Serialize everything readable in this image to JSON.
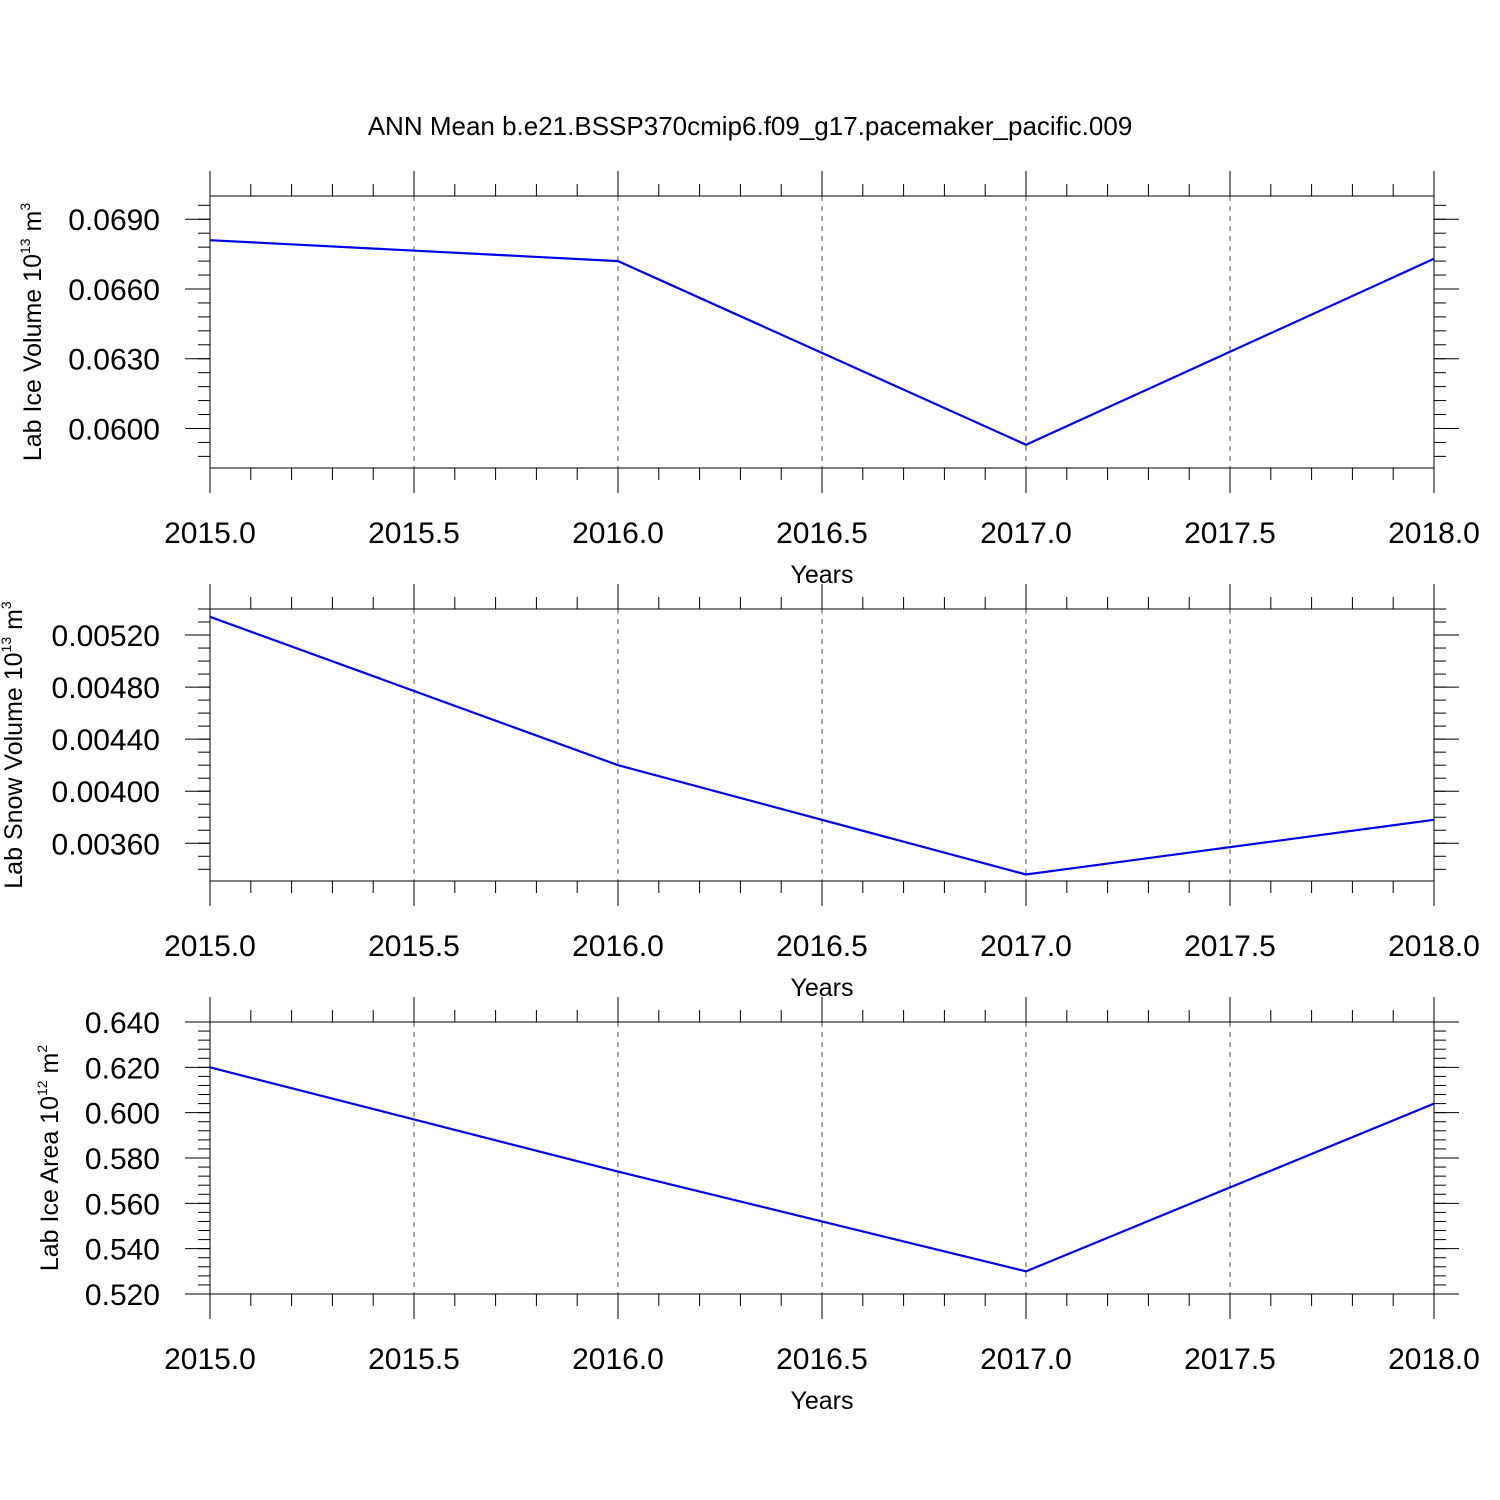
{
  "figure": {
    "title": "ANN Mean b.e21.BSSP370cmip6.f09_g17.pacemaker_pacific.009"
  },
  "chart_data": [
    {
      "type": "line",
      "xlabel": "Years",
      "ylabel": {
        "text": "Lab Ice Volume 10",
        "exp": "13",
        "unit": " m",
        "unit_exp": "3"
      },
      "xlim": [
        2015.0,
        2018.0
      ],
      "ylim": [
        0.0583,
        0.07
      ],
      "xticks": [
        "2015.0",
        "2015.5",
        "2016.0",
        "2016.5",
        "2017.0",
        "2017.5",
        "2018.0"
      ],
      "yticks": [
        "0.0690",
        "0.0660",
        "0.0630",
        "0.0600"
      ],
      "x_minor": 0.1,
      "y_minor": 0.0006,
      "grid": "vertical-dashed",
      "series": [
        {
          "color": "#0000ee",
          "x": [
            2015,
            2016,
            2017,
            2018
          ],
          "y": [
            0.0681,
            0.0672,
            0.0593,
            0.0673
          ]
        }
      ]
    },
    {
      "type": "line",
      "xlabel": "Years",
      "ylabel": {
        "text": "Lab Snow Volume 10",
        "exp": "13",
        "unit": " m",
        "unit_exp": "3"
      },
      "xlim": [
        2015.0,
        2018.0
      ],
      "ylim": [
        0.00331,
        0.0054
      ],
      "xticks": [
        "2015.0",
        "2015.5",
        "2016.0",
        "2016.5",
        "2017.0",
        "2017.5",
        "2018.0"
      ],
      "yticks": [
        "0.00520",
        "0.00480",
        "0.00440",
        "0.00400",
        "0.00360"
      ],
      "x_minor": 0.1,
      "y_minor": 0.0001,
      "grid": "vertical-dashed",
      "series": [
        {
          "color": "#0000ee",
          "x": [
            2015,
            2016,
            2017,
            2018
          ],
          "y": [
            0.00534,
            0.0042,
            0.00336,
            0.00378
          ]
        }
      ]
    },
    {
      "type": "line",
      "xlabel": "Years",
      "ylabel": {
        "text": "Lab Ice Area 10",
        "exp": "12",
        "unit": " m",
        "unit_exp": "2"
      },
      "xlim": [
        2015.0,
        2018.0
      ],
      "ylim": [
        0.52,
        0.64
      ],
      "xticks": [
        "2015.0",
        "2015.5",
        "2016.0",
        "2016.5",
        "2017.0",
        "2017.5",
        "2018.0"
      ],
      "yticks": [
        "0.640",
        "0.620",
        "0.600",
        "0.580",
        "0.560",
        "0.540",
        "0.520"
      ],
      "x_minor": 0.1,
      "y_minor": 0.004,
      "grid": "vertical-dashed",
      "series": [
        {
          "color": "#0000ee",
          "x": [
            2015,
            2016,
            2017,
            2018
          ],
          "y": [
            0.62,
            0.574,
            0.53,
            0.604
          ]
        }
      ]
    }
  ]
}
